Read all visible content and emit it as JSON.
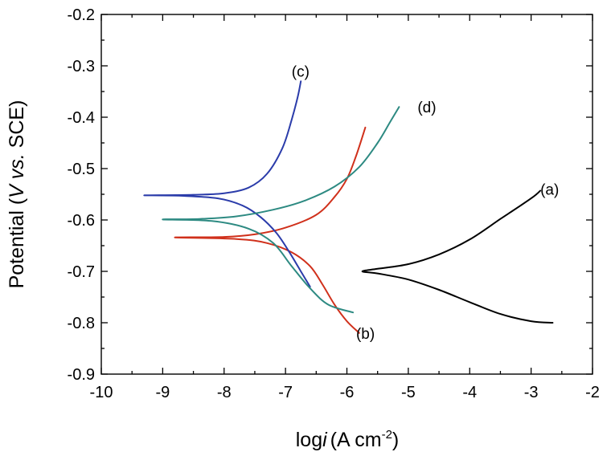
{
  "chart_data": {
    "type": "line",
    "xlabel": "log",
    "xlabel_italic": "i",
    "xlabel_unit": "(A cm",
    "xlabel_sup": "-2",
    "xlabel_close": ")",
    "ylabel": "Potential (",
    "ylabel_italic1": "V",
    "ylabel_mid": " ",
    "ylabel_italic2": "vs.",
    "ylabel_end": " SCE)",
    "xlim": [
      -10,
      -2
    ],
    "ylim": [
      -0.9,
      -0.2
    ],
    "xticks": [
      "-10",
      "-9",
      "-8",
      "-7",
      "-6",
      "-5",
      "-4",
      "-3",
      "-2"
    ],
    "yticks": [
      "-0.2",
      "-0.3",
      "-0.4",
      "-0.5",
      "-0.6",
      "-0.7",
      "-0.8",
      "-0.9"
    ],
    "grid": false,
    "series": [
      {
        "name": "(a)",
        "color": "#000000",
        "points": [
          [
            -2.65,
            -0.8
          ],
          [
            -3.0,
            -0.797
          ],
          [
            -3.5,
            -0.783
          ],
          [
            -4.0,
            -0.76
          ],
          [
            -4.5,
            -0.736
          ],
          [
            -5.0,
            -0.716
          ],
          [
            -5.5,
            -0.704
          ],
          [
            -5.75,
            -0.7
          ],
          [
            -5.5,
            -0.695
          ],
          [
            -5.0,
            -0.686
          ],
          [
            -4.5,
            -0.667
          ],
          [
            -4.0,
            -0.638
          ],
          [
            -3.5,
            -0.598
          ],
          [
            -3.0,
            -0.558
          ],
          [
            -2.85,
            -0.543
          ]
        ],
        "label_at": [
          -2.85,
          -0.54
        ]
      },
      {
        "name": "(b)",
        "color": "#d0301b",
        "points": [
          [
            -5.8,
            -0.82
          ],
          [
            -6.0,
            -0.797
          ],
          [
            -6.2,
            -0.765
          ],
          [
            -6.4,
            -0.725
          ],
          [
            -6.6,
            -0.69
          ],
          [
            -6.9,
            -0.663
          ],
          [
            -7.3,
            -0.645
          ],
          [
            -7.8,
            -0.637
          ],
          [
            -8.8,
            -0.634
          ],
          [
            -8.0,
            -0.633
          ],
          [
            -7.5,
            -0.628
          ],
          [
            -7.0,
            -0.615
          ],
          [
            -6.5,
            -0.59
          ],
          [
            -6.2,
            -0.555
          ],
          [
            -6.0,
            -0.52
          ],
          [
            -5.85,
            -0.475
          ],
          [
            -5.7,
            -0.42
          ]
        ],
        "label_at": [
          -5.85,
          -0.82
        ]
      },
      {
        "name": "(c)",
        "color": "#2b3caa",
        "points": [
          [
            -6.6,
            -0.73
          ],
          [
            -6.75,
            -0.7
          ],
          [
            -6.95,
            -0.66
          ],
          [
            -7.15,
            -0.625
          ],
          [
            -7.4,
            -0.595
          ],
          [
            -7.7,
            -0.572
          ],
          [
            -8.1,
            -0.558
          ],
          [
            -8.7,
            -0.553
          ],
          [
            -9.3,
            -0.552
          ],
          [
            -8.5,
            -0.551
          ],
          [
            -8.0,
            -0.548
          ],
          [
            -7.6,
            -0.537
          ],
          [
            -7.3,
            -0.51
          ],
          [
            -7.05,
            -0.46
          ],
          [
            -6.9,
            -0.405
          ],
          [
            -6.8,
            -0.36
          ],
          [
            -6.75,
            -0.33
          ]
        ],
        "label_at": [
          -6.9,
          -0.31
        ]
      },
      {
        "name": "(d)",
        "color": "#2d8a82",
        "points": [
          [
            -5.9,
            -0.78
          ],
          [
            -6.3,
            -0.765
          ],
          [
            -6.6,
            -0.733
          ],
          [
            -6.9,
            -0.69
          ],
          [
            -7.2,
            -0.645
          ],
          [
            -7.6,
            -0.617
          ],
          [
            -8.2,
            -0.602
          ],
          [
            -9.0,
            -0.599
          ],
          [
            -8.4,
            -0.598
          ],
          [
            -7.8,
            -0.593
          ],
          [
            -7.2,
            -0.58
          ],
          [
            -6.7,
            -0.563
          ],
          [
            -6.2,
            -0.535
          ],
          [
            -5.8,
            -0.497
          ],
          [
            -5.5,
            -0.45
          ],
          [
            -5.3,
            -0.41
          ],
          [
            -5.15,
            -0.38
          ]
        ],
        "label_at": [
          -4.85,
          -0.38
        ]
      }
    ]
  }
}
